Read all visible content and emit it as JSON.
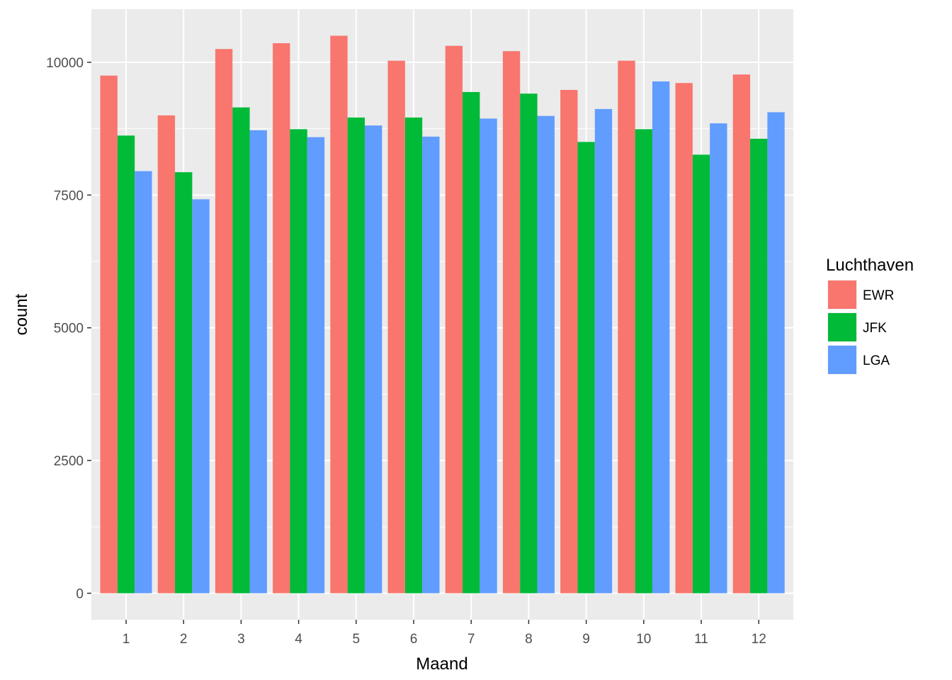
{
  "chart_data": {
    "type": "bar",
    "xlabel": "Maand",
    "ylabel": "count",
    "categories": [
      "1",
      "2",
      "3",
      "4",
      "5",
      "6",
      "7",
      "8",
      "9",
      "10",
      "11",
      "12"
    ],
    "series": [
      {
        "name": "EWR",
        "color": "#F8766D",
        "values": [
          9750,
          9000,
          10250,
          10360,
          10500,
          10030,
          10310,
          10210,
          9480,
          10030,
          9610,
          9770
        ]
      },
      {
        "name": "JFK",
        "color": "#00BA38",
        "values": [
          8620,
          7930,
          9150,
          8740,
          8960,
          8960,
          9440,
          9410,
          8500,
          8740,
          8260,
          8560
        ]
      },
      {
        "name": "LGA",
        "color": "#619CFF",
        "values": [
          7950,
          7420,
          8720,
          8590,
          8810,
          8600,
          8940,
          8990,
          9120,
          9640,
          8850,
          9060
        ]
      }
    ],
    "yticks": [
      0,
      2500,
      5000,
      7500,
      10000
    ],
    "ylim": [
      -500,
      11000
    ],
    "grid": true,
    "legend": {
      "title": "Luchthaven",
      "position": "right"
    }
  }
}
